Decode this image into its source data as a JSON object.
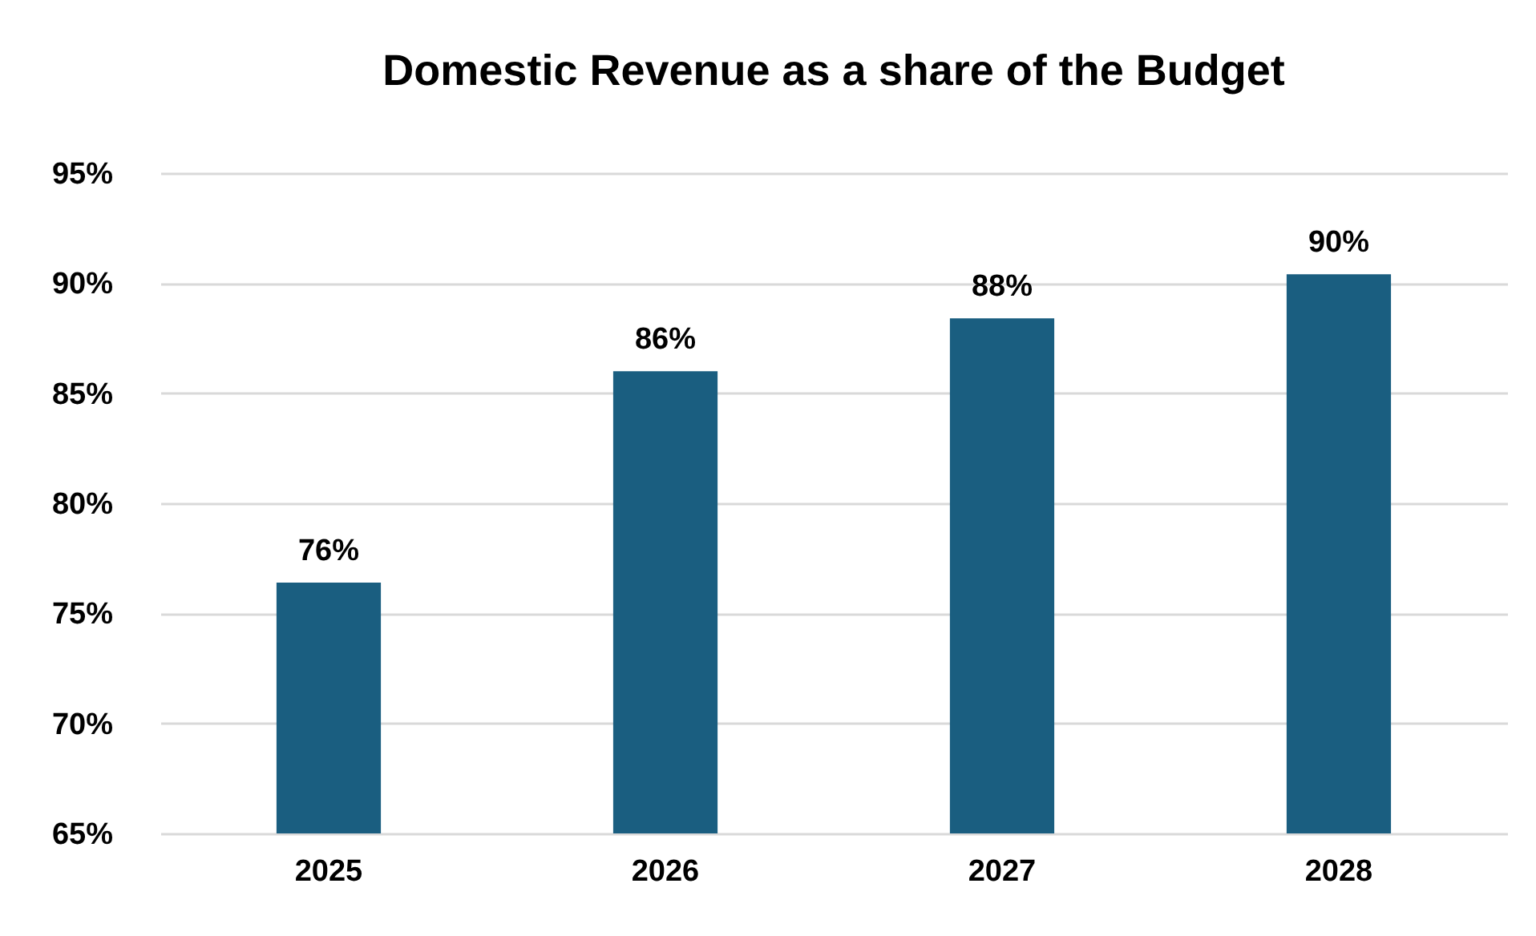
{
  "chart_data": {
    "type": "bar",
    "title": "Domestic Revenue as a share of the Budget",
    "categories": [
      "2025",
      "2026",
      "2027",
      "2028"
    ],
    "values": [
      76.4,
      86,
      88.4,
      90.4
    ],
    "value_labels": [
      "76%",
      "86%",
      "88%",
      "90%"
    ],
    "color": "#1a5e80",
    "ylim": [
      65,
      95
    ],
    "yticks": [
      {
        "value": 65,
        "label": "65%"
      },
      {
        "value": 70,
        "label": "70%"
      },
      {
        "value": 75,
        "label": "75%"
      },
      {
        "value": 80,
        "label": "80%"
      },
      {
        "value": 85,
        "label": "85%"
      },
      {
        "value": 90,
        "label": "90%"
      },
      {
        "value": 95,
        "label": "95%"
      }
    ],
    "grid": "y"
  }
}
